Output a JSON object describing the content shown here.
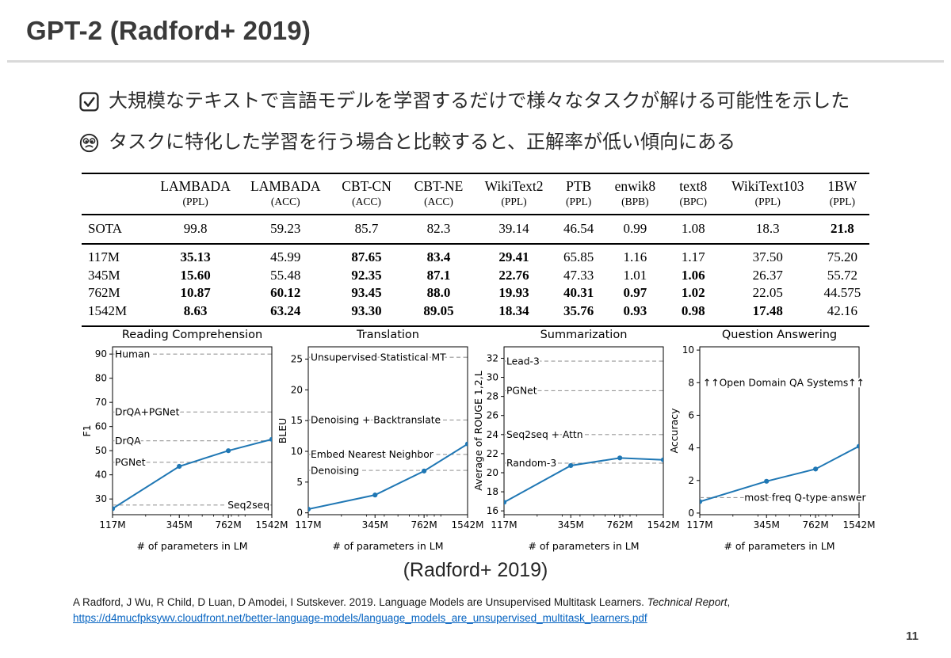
{
  "slide": {
    "title": "GPT-2 (Radford+ 2019)",
    "page_number": "11"
  },
  "bullets": [
    {
      "icon": "checkbox-checked",
      "text": "大規模なテキストで言語モデルを学習するだけで様々なタスクが解ける可能性を示した"
    },
    {
      "icon": "confounded-face",
      "text": "タスクに特化した学習を行う場合と比較すると、正解率が低い傾向にある"
    }
  ],
  "table": {
    "columns": [
      {
        "name": "LAMBADA",
        "sub": "(PPL)"
      },
      {
        "name": "LAMBADA",
        "sub": "(ACC)"
      },
      {
        "name": "CBT-CN",
        "sub": "(ACC)"
      },
      {
        "name": "CBT-NE",
        "sub": "(ACC)"
      },
      {
        "name": "WikiText2",
        "sub": "(PPL)"
      },
      {
        "name": "PTB",
        "sub": "(PPL)"
      },
      {
        "name": "enwik8",
        "sub": "(BPB)"
      },
      {
        "name": "text8",
        "sub": "(BPC)"
      },
      {
        "name": "WikiText103",
        "sub": "(PPL)"
      },
      {
        "name": "1BW",
        "sub": "(PPL)"
      }
    ],
    "rows": [
      {
        "label": "SOTA",
        "values": [
          "99.8",
          "59.23",
          "85.7",
          "82.3",
          "39.14",
          "46.54",
          "0.99",
          "1.08",
          "18.3",
          "21.8"
        ],
        "bold": [
          false,
          false,
          false,
          false,
          false,
          false,
          false,
          false,
          false,
          true
        ]
      },
      {
        "label": "117M",
        "values": [
          "35.13",
          "45.99",
          "87.65",
          "83.4",
          "29.41",
          "65.85",
          "1.16",
          "1.17",
          "37.50",
          "75.20"
        ],
        "bold": [
          true,
          false,
          true,
          true,
          true,
          false,
          false,
          false,
          false,
          false
        ]
      },
      {
        "label": "345M",
        "values": [
          "15.60",
          "55.48",
          "92.35",
          "87.1",
          "22.76",
          "47.33",
          "1.01",
          "1.06",
          "26.37",
          "55.72"
        ],
        "bold": [
          true,
          false,
          true,
          true,
          true,
          false,
          false,
          true,
          false,
          false
        ]
      },
      {
        "label": "762M",
        "values": [
          "10.87",
          "60.12",
          "93.45",
          "88.0",
          "19.93",
          "40.31",
          "0.97",
          "1.02",
          "22.05",
          "44.575"
        ],
        "bold": [
          true,
          true,
          true,
          true,
          true,
          true,
          true,
          true,
          false,
          false
        ]
      },
      {
        "label": "1542M",
        "values": [
          "8.63",
          "63.24",
          "93.30",
          "89.05",
          "18.34",
          "35.76",
          "0.93",
          "0.98",
          "17.48",
          "42.16"
        ],
        "bold": [
          true,
          true,
          true,
          true,
          true,
          true,
          true,
          true,
          true,
          false
        ]
      }
    ]
  },
  "chart_data": [
    {
      "type": "line",
      "title": "Reading Comprehension",
      "ylabel": "F1",
      "xlabel": "# of parameters in LM",
      "categories": [
        "117M",
        "345M",
        "762M",
        "1542M"
      ],
      "x_positions": [
        0,
        0.419,
        0.727,
        1.0
      ],
      "x_minor": [
        0.208,
        0.365,
        0.477,
        0.563,
        0.634,
        0.694,
        0.746,
        0.791,
        0.832
      ],
      "values": [
        26,
        43.5,
        50,
        54.7
      ],
      "ylim": [
        23.5,
        93
      ],
      "yticks": [
        30,
        40,
        50,
        60,
        70,
        80,
        90
      ],
      "grid": false,
      "legend": "none",
      "baselines": [
        {
          "label": "Human",
          "value": 90,
          "align": "left"
        },
        {
          "label": "DrQA+PGNet",
          "value": 66,
          "align": "left"
        },
        {
          "label": "DrQA",
          "value": 54.1,
          "align": "left"
        },
        {
          "label": "PGNet",
          "value": 45.2,
          "align": "left"
        },
        {
          "label": "Seq2seq",
          "value": 27.5,
          "align": "right"
        }
      ]
    },
    {
      "type": "line",
      "title": "Translation",
      "ylabel": "BLEU",
      "xlabel": "# of parameters in LM",
      "categories": [
        "117M",
        "345M",
        "762M",
        "1542M"
      ],
      "x_positions": [
        0,
        0.419,
        0.727,
        1.0
      ],
      "x_minor": [
        0.208,
        0.365,
        0.477,
        0.563,
        0.634,
        0.694,
        0.746,
        0.791,
        0.832
      ],
      "values": [
        0.6,
        2.9,
        6.8,
        11.2
      ],
      "ylim": [
        -0.3,
        27
      ],
      "yticks": [
        0,
        5,
        10,
        15,
        20,
        25
      ],
      "grid": false,
      "legend": "none",
      "baselines": [
        {
          "label": "Unsupervised Statistical MT",
          "value": 25.3,
          "align": "left"
        },
        {
          "label": "Denoising + Backtranslate",
          "value": 15.1,
          "align": "left"
        },
        {
          "label": "Embed Nearest Neighbor",
          "value": 9.5,
          "align": "left"
        },
        {
          "label": "Denoising",
          "value": 6.9,
          "align": "left"
        }
      ]
    },
    {
      "type": "line",
      "title": "Summarization",
      "ylabel": "Average of ROUGE 1,2,L",
      "xlabel": "# of parameters in LM",
      "categories": [
        "117M",
        "345M",
        "762M",
        "1542M"
      ],
      "x_positions": [
        0,
        0.419,
        0.727,
        1.0
      ],
      "x_minor": [
        0.208,
        0.365,
        0.477,
        0.563,
        0.634,
        0.694,
        0.746,
        0.791,
        0.832
      ],
      "values": [
        16.9,
        20.75,
        21.55,
        21.35
      ],
      "ylim": [
        15.6,
        33.2
      ],
      "yticks": [
        16,
        18,
        20,
        22,
        24,
        26,
        28,
        30,
        32
      ],
      "grid": false,
      "legend": "none",
      "baselines": [
        {
          "label": "Lead-3",
          "value": 31.7,
          "align": "left"
        },
        {
          "label": "PGNet",
          "value": 28.6,
          "align": "left"
        },
        {
          "label": "Seq2seq + Attn",
          "value": 24.0,
          "align": "left"
        },
        {
          "label": "Random-3",
          "value": 21.0,
          "align": "left"
        }
      ]
    },
    {
      "type": "line",
      "title": "Question Answering",
      "ylabel": "Accuracy",
      "xlabel": "# of parameters in LM",
      "categories": [
        "117M",
        "345M",
        "762M",
        "1542M"
      ],
      "x_positions": [
        0,
        0.419,
        0.727,
        1.0
      ],
      "x_minor": [
        0.208,
        0.365,
        0.477,
        0.563,
        0.634,
        0.694,
        0.746,
        0.791,
        0.832
      ],
      "values": [
        0.7,
        1.95,
        2.7,
        4.1
      ],
      "ylim": [
        -0.1,
        10.2
      ],
      "yticks": [
        0,
        2,
        4,
        6,
        8,
        10
      ],
      "grid": false,
      "legend": "none",
      "baselines": [
        {
          "label": "↑↑Open Domain QA Systems↑↑",
          "value": 8,
          "align": "left",
          "line": false,
          "lx": 0.02
        },
        {
          "label": "most freq Q-type answer",
          "value": 0.95,
          "align": "left",
          "lx": 0.28
        }
      ]
    }
  ],
  "caption": {
    "text": "(Radford+ 2019)"
  },
  "citation": {
    "text": "A Radford, J Wu, R Child, D Luan, D Amodei, I Sutskever. 2019. Language Models are Unsupervised Multitask Learners. ",
    "italic": "Technical Report",
    "after_italic": ",",
    "link": "https://d4mucfpksywv.cloudfront.net/better-language-models/language_models_are_unsupervised_multitask_learners.pdf"
  },
  "colors": {
    "series_line": "#1f77b4",
    "baseline_dash": "#999999",
    "link": "#0563c1",
    "divider": "#d9d9d9"
  }
}
